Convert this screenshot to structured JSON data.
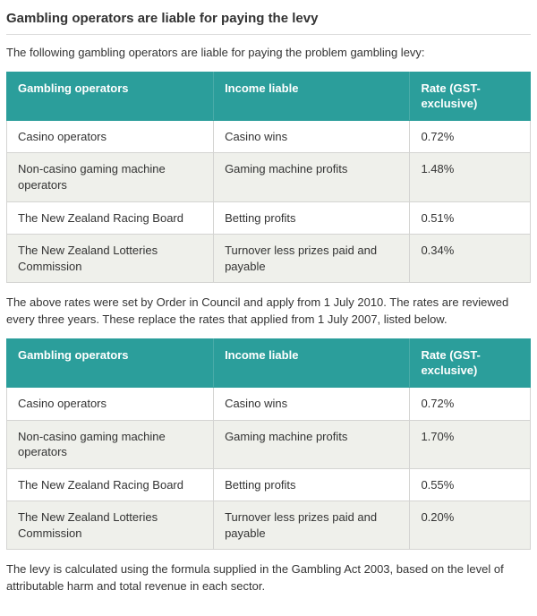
{
  "page": {
    "title": "Gambling operators are liable for paying the levy",
    "intro": "The following gambling operators are liable for paying the problem gambling levy:",
    "between_text": "The above rates were set by Order in Council and apply from 1 July 2010. The rates are reviewed every three years. These replace the rates that applied from 1 July 2007, listed below.",
    "footer_text": "The levy is calculated using the formula supplied in the Gambling Act 2003, based on the level of attributable harm and total revenue in each sector."
  },
  "colors": {
    "table_header_bg": "#2b9e9b",
    "table_header_text": "#ffffff",
    "row_alt_bg": "#eff0eb",
    "body_text": "#333333"
  },
  "tables": [
    {
      "name": "rates-from-1-july-2010",
      "headers": [
        "Gambling operators",
        "Income liable",
        "Rate (GST-exclusive)"
      ],
      "rows": [
        [
          "Casino operators",
          "Casino wins",
          "0.72%"
        ],
        [
          "Non-casino gaming machine operators",
          "Gaming machine profits",
          "1.48%"
        ],
        [
          "The New Zealand Racing Board",
          "Betting profits",
          "0.51%"
        ],
        [
          "The New Zealand Lotteries Commission",
          "Turnover less prizes paid and payable",
          "0.34%"
        ]
      ]
    },
    {
      "name": "rates-from-1-july-2007",
      "headers": [
        "Gambling operators",
        "Income liable",
        "Rate (GST-exclusive)"
      ],
      "rows": [
        [
          "Casino operators",
          "Casino wins",
          "0.72%"
        ],
        [
          "Non-casino gaming machine operators",
          "Gaming machine profits",
          "1.70%"
        ],
        [
          "The New Zealand Racing Board",
          "Betting profits",
          "0.55%"
        ],
        [
          "The New Zealand Lotteries Commission",
          "Turnover less prizes paid and payable",
          "0.20%"
        ]
      ]
    }
  ]
}
